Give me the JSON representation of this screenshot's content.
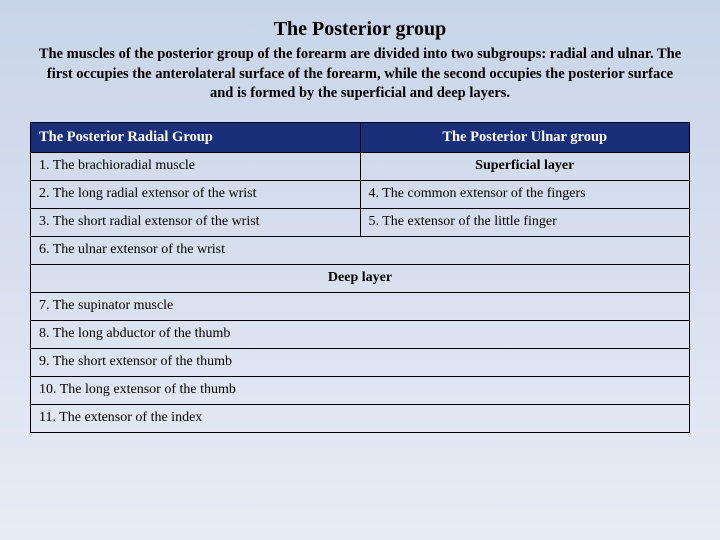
{
  "title": "The Posterior group",
  "intro": "The muscles of the posterior group of the forearm are divided into two subgroups: radial and ulnar. The first occupies the anterolateral surface of the forearm, while the second occupies the posterior surface and is formed by the superficial and deep layers.",
  "table": {
    "header_left": "The Posterior Radial Group",
    "header_right": "The  Posterior Ulnar group",
    "row1_left": "1. The brachioradial muscle",
    "row1_right": "Superficial layer",
    "row2_left": "2. The long radial extensor of the wrist",
    "row2_right": "4. The common extensor of the fingers",
    "row3_left": "3. The short radial extensor of the wrist",
    "row3_right": "5. The extensor of the little finger",
    "row4": "6. The ulnar extensor of the wrist",
    "row5": "Deep layer",
    "row6": "7. The supinator muscle",
    "row7": "8. The long abductor of the thumb",
    "row8": "9. The short extensor of the thumb",
    "row9": "10. The long extensor of the thumb",
    "row10": "11. The extensor of the index"
  },
  "colors": {
    "header_bg": "#1a2f7a",
    "header_text": "#ffffff",
    "border": "#000000",
    "bg_top": "#c8d4e8",
    "bg_bottom": "#e8ecf5"
  }
}
